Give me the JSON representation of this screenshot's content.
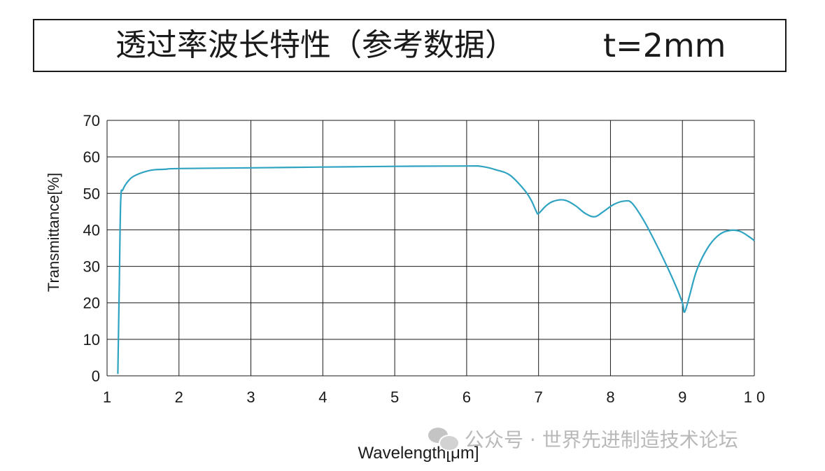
{
  "title": {
    "main": "透过率波长特性（参考数据）",
    "thickness": "t=2mm"
  },
  "watermark": {
    "icon": "wechat-icon",
    "text": "公众号 · 世界先进制造技术论坛"
  },
  "colors": {
    "curve": "#2fa3c2",
    "grid": "#1a1a1a",
    "text": "#1a1a1a"
  },
  "chart_data": {
    "type": "line",
    "title": "透过率波长特性（参考数据）  t=2mm",
    "xlabel": "Wavelength[μm]",
    "ylabel": "Transmittance[%]",
    "xlim": [
      1,
      10
    ],
    "ylim": [
      0,
      70
    ],
    "x_ticks": [
      1,
      2,
      3,
      4,
      5,
      6,
      7,
      8,
      9,
      10
    ],
    "x_tick_labels": [
      "1",
      "2",
      "3",
      "4",
      "5",
      "6",
      "7",
      "8",
      "9",
      "1 0"
    ],
    "y_ticks": [
      0,
      10,
      20,
      30,
      40,
      50,
      60,
      70
    ],
    "grid": true,
    "series": [
      {
        "x": [
          1.15,
          1.17,
          1.19,
          1.22,
          1.3,
          1.4,
          1.6,
          1.8,
          2.0,
          3.0,
          4.0,
          5.0,
          6.0,
          6.2,
          6.4,
          6.6,
          6.8,
          6.9,
          6.97,
          7.0,
          7.1,
          7.2,
          7.35,
          7.5,
          7.65,
          7.78,
          7.9,
          8.05,
          8.2,
          8.3,
          8.45,
          8.6,
          8.75,
          8.9,
          9.0,
          9.03,
          9.1,
          9.2,
          9.35,
          9.5,
          9.65,
          9.8,
          9.95,
          10.0
        ],
        "y": [
          0.5,
          25,
          48,
          51,
          53.5,
          55,
          56.3,
          56.6,
          56.8,
          57.0,
          57.2,
          57.4,
          57.5,
          57.4,
          56.5,
          55,
          51,
          48,
          45,
          44.5,
          46.5,
          47.8,
          48.2,
          46.8,
          44.5,
          43.6,
          45,
          47,
          47.9,
          47.3,
          43,
          37.5,
          31.5,
          25,
          20,
          17.5,
          22,
          29,
          35,
          38.5,
          39.8,
          39.6,
          37.8,
          37
        ]
      }
    ]
  }
}
